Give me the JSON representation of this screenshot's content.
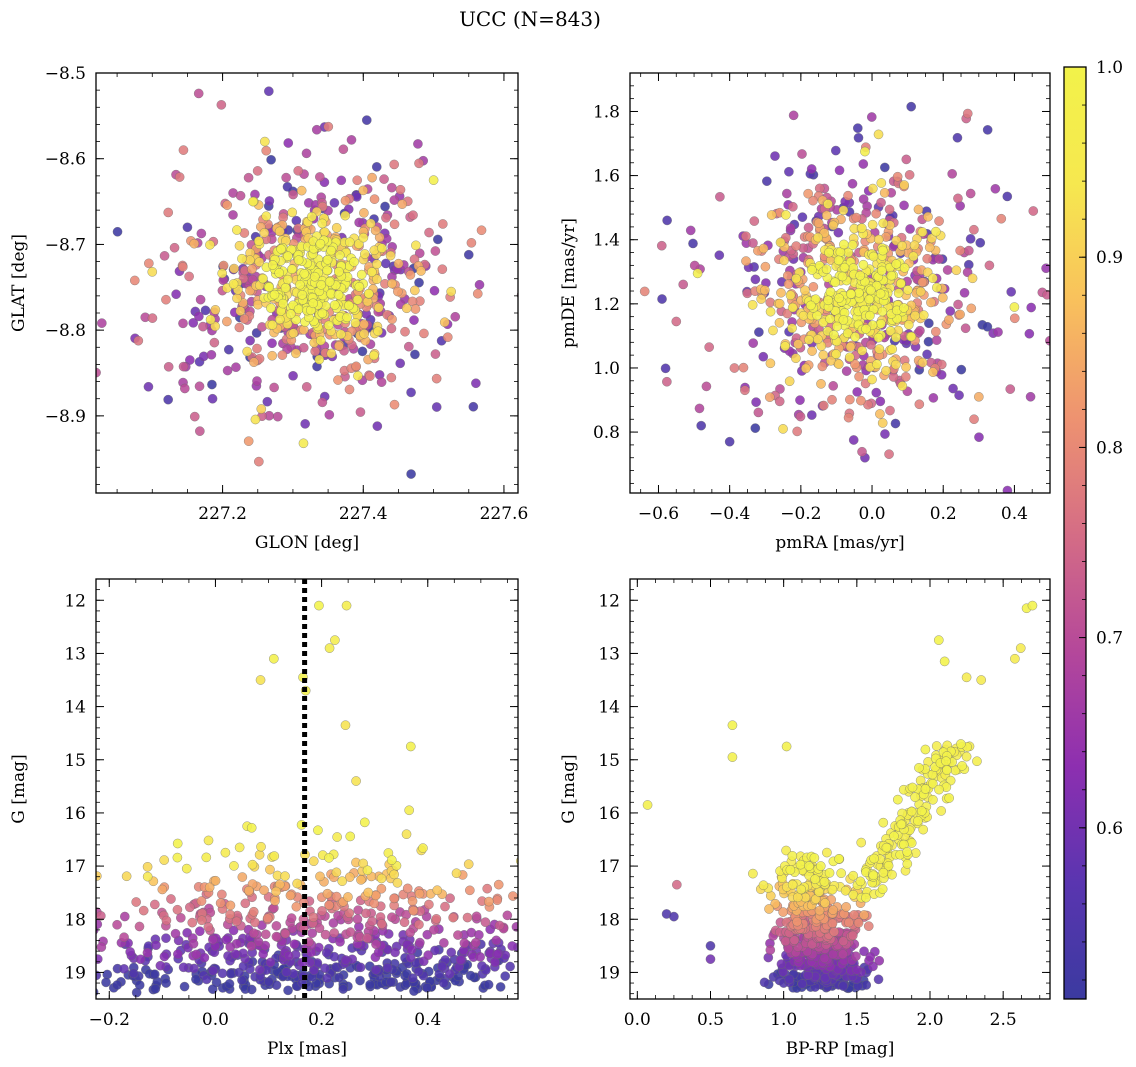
{
  "title": "UCC (N=843)",
  "colorbar": {
    "range": [
      0.51,
      1.0
    ],
    "ticks": [
      0.6,
      0.7,
      0.8,
      0.9,
      1.0
    ],
    "tick_labels": [
      "0.6",
      "0.7",
      "0.8",
      "0.9",
      "1.0"
    ],
    "colormap": "plasma",
    "colormap_stops": [
      "#3b3aa0",
      "#5a35b0",
      "#8d2fb0",
      "#b5489a",
      "#d56d85",
      "#ee9370",
      "#f9c15c",
      "#f6e84f",
      "#f2f24a"
    ]
  },
  "chart_data": [
    {
      "type": "scatter",
      "panel": "top-left",
      "xlabel": "GLON [deg]",
      "ylabel": "GLAT [deg]",
      "xlim": [
        227.02,
        227.62
      ],
      "ylim": [
        -8.99,
        -8.5
      ],
      "xticks": [
        227.2,
        227.4,
        227.6
      ],
      "xtick_labels": [
        "227.2",
        "227.4",
        "227.6"
      ],
      "yticks": [
        -8.5,
        -8.6,
        -8.7,
        -8.8,
        -8.9
      ],
      "ytick_labels": [
        "−8.5",
        "−8.6",
        "−8.7",
        "−8.8",
        "−8.9"
      ],
      "n_points": 843,
      "center": [
        227.33,
        -8.745
      ],
      "spread": [
        0.075,
        0.055
      ],
      "points": [
        [
          227.55,
          -8.712,
          0.52
        ],
        [
          227.405,
          -8.555,
          0.53
        ],
        [
          227.315,
          -8.932,
          0.95
        ],
        [
          227.1,
          -8.732,
          0.92
        ],
        [
          227.09,
          -8.785,
          0.7
        ],
        [
          227.525,
          -8.755,
          0.92
        ],
        [
          227.26,
          -8.58,
          0.93
        ],
        [
          227.345,
          -8.563,
          0.6
        ],
        [
          227.42,
          -8.912,
          0.6
        ],
        [
          227.5,
          -8.625,
          0.98
        ],
        [
          227.255,
          -8.892,
          0.9
        ],
        [
          227.15,
          -8.68,
          0.55
        ]
      ]
    },
    {
      "type": "scatter",
      "panel": "top-right",
      "xlabel": "pmRA [mas/yr]",
      "ylabel": "pmDE [mas/yr]",
      "xlim": [
        -0.68,
        0.5
      ],
      "ylim": [
        0.61,
        1.92
      ],
      "xticks": [
        -0.6,
        -0.4,
        -0.2,
        0.0,
        0.2,
        0.4
      ],
      "xtick_labels": [
        "−0.6",
        "−0.4",
        "−0.2",
        "0.0",
        "0.2",
        "0.4"
      ],
      "yticks": [
        0.8,
        1.0,
        1.2,
        1.4,
        1.6,
        1.8
      ],
      "ytick_labels": [
        "0.8",
        "1.0",
        "1.2",
        "1.4",
        "1.6",
        "1.8"
      ],
      "n_points": 843,
      "center": [
        -0.04,
        1.24
      ],
      "spread": [
        0.15,
        0.16
      ],
      "points": [
        [
          0.11,
          1.815,
          0.53
        ],
        [
          0.24,
          1.718,
          0.55
        ],
        [
          -0.04,
          1.748,
          0.54
        ],
        [
          -0.49,
          1.295,
          0.98
        ],
        [
          -0.59,
          1.215,
          0.55
        ],
        [
          -0.48,
          0.82,
          0.55
        ],
        [
          -0.4,
          0.77,
          0.55
        ],
        [
          0.4,
          1.19,
          0.98
        ],
        [
          0.38,
          1.535,
          0.55
        ],
        [
          -0.02,
          0.72,
          0.6
        ],
        [
          -0.25,
          0.81,
          0.92
        ],
        [
          -0.55,
          1.145,
          0.75
        ],
        [
          -0.02,
          1.675,
          0.98
        ],
        [
          0.3,
          0.91,
          0.85
        ]
      ]
    },
    {
      "type": "scatter",
      "panel": "bottom-left",
      "xlabel": "Plx [mas]",
      "ylabel": "G [mag]",
      "xlim": [
        -0.225,
        0.57
      ],
      "ylim": [
        19.5,
        11.6
      ],
      "y_inverted": true,
      "xticks": [
        -0.2,
        0.0,
        0.2,
        0.4
      ],
      "xtick_labels": [
        "−0.2",
        "0.0",
        "0.2",
        "0.4"
      ],
      "yticks": [
        12,
        13,
        14,
        15,
        16,
        17,
        18,
        19
      ],
      "ytick_labels": [
        "12",
        "13",
        "14",
        "15",
        "16",
        "17",
        "18",
        "19"
      ],
      "vline": {
        "x": 0.168,
        "style": "dotted"
      },
      "n_points": 843,
      "points": [
        [
          0.195,
          12.1,
          1.0
        ],
        [
          0.247,
          12.1,
          0.97
        ],
        [
          0.225,
          12.75,
          0.97
        ],
        [
          0.215,
          12.9,
          0.97
        ],
        [
          0.11,
          13.1,
          0.99
        ],
        [
          0.085,
          13.5,
          0.93
        ],
        [
          0.165,
          13.45,
          0.99
        ],
        [
          0.17,
          13.7,
          0.99
        ],
        [
          0.245,
          14.35,
          0.93
        ],
        [
          0.368,
          14.75,
          0.99
        ],
        [
          0.5,
          18.47,
          0.55
        ],
        [
          -0.17,
          18.47,
          0.55
        ],
        [
          0.43,
          19.2,
          0.55
        ],
        [
          0.265,
          15.4,
          0.93
        ],
        [
          0.36,
          16.4,
          0.93
        ],
        [
          0.365,
          15.95,
          0.97
        ]
      ]
    },
    {
      "type": "scatter",
      "panel": "bottom-right",
      "xlabel": "BP-RP [mag]",
      "ylabel": "G [mag]",
      "xlim": [
        -0.05,
        2.82
      ],
      "ylim": [
        19.5,
        11.6
      ],
      "y_inverted": true,
      "xticks": [
        0.0,
        0.5,
        1.0,
        1.5,
        2.0,
        2.5
      ],
      "xtick_labels": [
        "0.0",
        "0.5",
        "1.0",
        "1.5",
        "2.0",
        "2.5"
      ],
      "yticks": [
        12,
        13,
        14,
        15,
        16,
        17,
        18,
        19
      ],
      "ytick_labels": [
        "12",
        "13",
        "14",
        "15",
        "16",
        "17",
        "18",
        "19"
      ],
      "n_points": 843,
      "points": [
        [
          2.66,
          12.15,
          1.0
        ],
        [
          2.7,
          12.1,
          1.0
        ],
        [
          2.06,
          12.75,
          1.0
        ],
        [
          2.1,
          13.15,
          1.0
        ],
        [
          2.25,
          13.45,
          0.95
        ],
        [
          2.35,
          13.5,
          0.95
        ],
        [
          2.62,
          12.9,
          0.95
        ],
        [
          2.58,
          13.1,
          0.95
        ],
        [
          0.65,
          14.35,
          1.0
        ],
        [
          0.65,
          14.95,
          0.99
        ],
        [
          0.07,
          15.85,
          0.98
        ],
        [
          0.27,
          17.35,
          0.75
        ],
        [
          0.2,
          17.9,
          0.55
        ],
        [
          0.25,
          17.95,
          0.55
        ],
        [
          0.5,
          18.5,
          0.55
        ],
        [
          0.5,
          18.75,
          0.6
        ],
        [
          1.02,
          14.75,
          0.99
        ],
        [
          1.0,
          19.2,
          0.55
        ]
      ]
    }
  ]
}
